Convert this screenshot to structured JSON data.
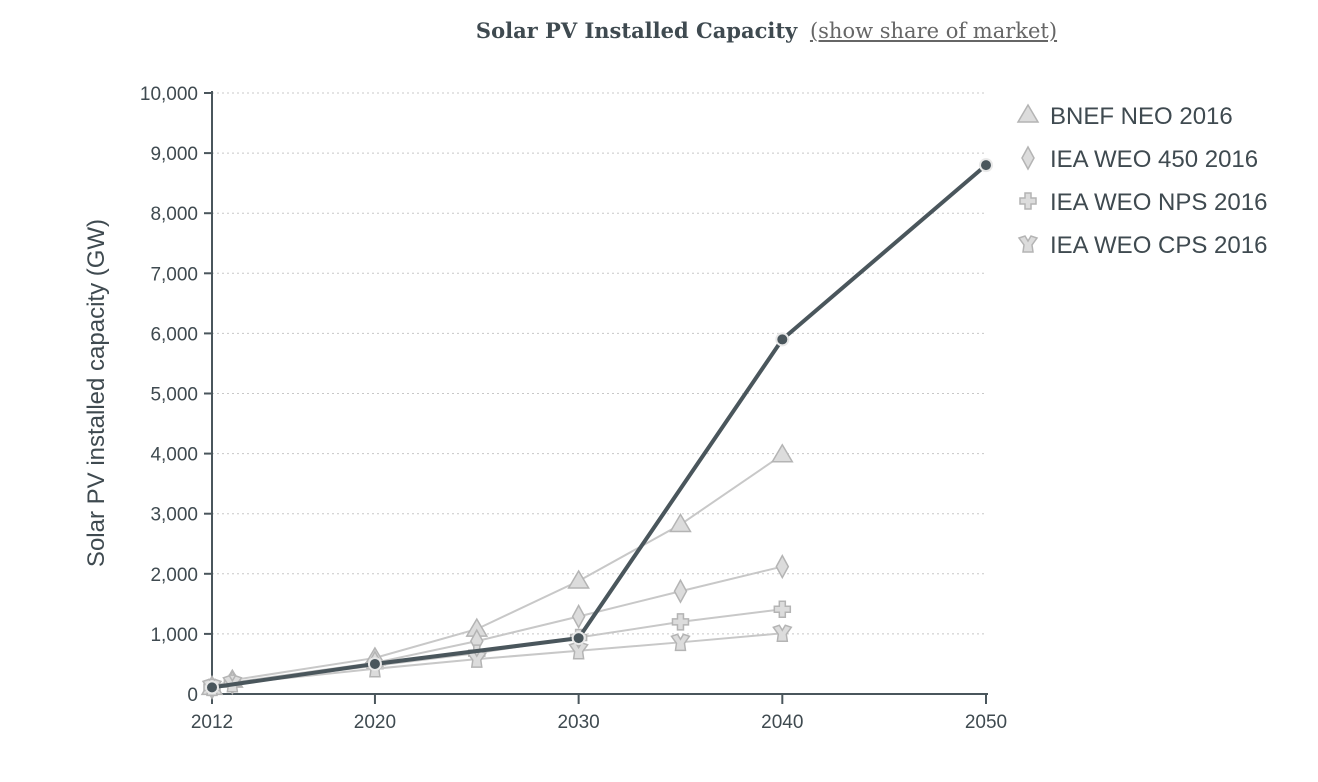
{
  "header": {
    "title": "Solar PV Installed Capacity",
    "toggle_link": "(show share of market)"
  },
  "colors": {
    "main_series": "#4a565c",
    "projection_series": "#c8c8c8",
    "marker_fill": "#dcdcdc",
    "marker_stroke": "#b4b4b4",
    "axis": "#4a565c",
    "grid": "#c8c8c8",
    "text": "#3f4a50"
  },
  "chart_data": {
    "type": "line",
    "title": "Solar PV Installed Capacity",
    "ylabel": "Solar PV installed capacity (GW)",
    "xlabel": "",
    "xlim": [
      2012,
      2050
    ],
    "ylim": [
      0,
      10000
    ],
    "x_ticks": [
      2012,
      2020,
      2030,
      2040,
      2050
    ],
    "y_ticks": [
      0,
      1000,
      2000,
      3000,
      4000,
      5000,
      6000,
      7000,
      8000,
      9000,
      10000
    ],
    "y_tick_labels": [
      "0",
      "1,000",
      "2,000",
      "3,000",
      "4,000",
      "5,000",
      "6,000",
      "7,000",
      "8,000",
      "9,000",
      "10,000"
    ],
    "grid": "horizontal dotted",
    "legend_position": "top-right",
    "main_series": {
      "x": [
        2012,
        2020,
        2030,
        2040,
        2050
      ],
      "y": [
        110,
        500,
        930,
        5900,
        8800
      ]
    },
    "series": [
      {
        "name": "BNEF NEO 2016",
        "marker": "triangle",
        "x": [
          2012,
          2013,
          2020,
          2025,
          2030,
          2035,
          2040
        ],
        "y": [
          110,
          230,
          600,
          1080,
          1880,
          2820,
          3980
        ]
      },
      {
        "name": "IEA WEO 450 2016",
        "marker": "diamond",
        "x": [
          2012,
          2013,
          2020,
          2025,
          2030,
          2035,
          2040
        ],
        "y": [
          110,
          190,
          520,
          880,
          1290,
          1710,
          2120
        ]
      },
      {
        "name": "IEA WEO NPS 2016",
        "marker": "plus",
        "x": [
          2012,
          2013,
          2020,
          2025,
          2030,
          2035,
          2040
        ],
        "y": [
          110,
          180,
          470,
          680,
          940,
          1200,
          1410
        ]
      },
      {
        "name": "IEA WEO CPS 2016",
        "marker": "cps",
        "x": [
          2012,
          2013,
          2020,
          2025,
          2030,
          2035,
          2040
        ],
        "y": [
          110,
          170,
          420,
          580,
          720,
          860,
          1010
        ]
      }
    ]
  }
}
